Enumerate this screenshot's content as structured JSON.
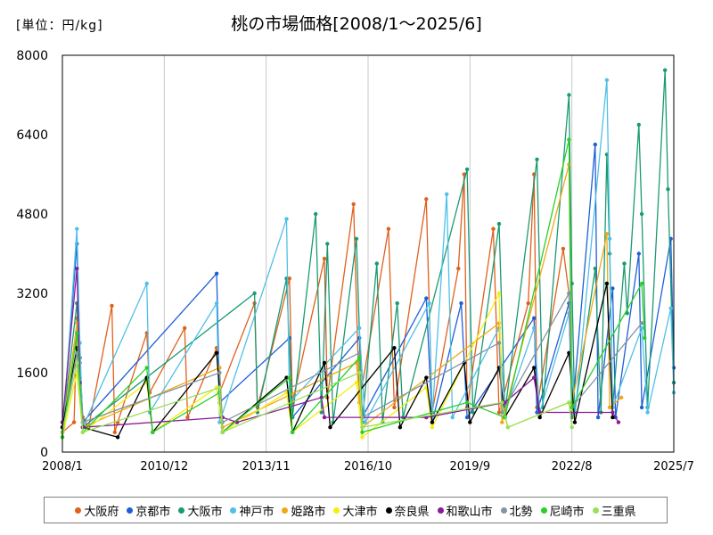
{
  "unit_label": "[単位：円/kg]",
  "title": "桃の市場価格[2008/1～2025/6]",
  "chart_data": {
    "type": "line",
    "title": "桃の市場価格[2008/1～2025/6]",
    "ylabel": "[単位：円/kg]",
    "ylim": [
      0,
      8000
    ],
    "yticks": [
      "0",
      "1600",
      "3200",
      "4800",
      "6400",
      "8000"
    ],
    "xticks": [
      "2008/1",
      "2010/12",
      "2013/11",
      "2016/10",
      "2019/9",
      "2022/8",
      "2025/7"
    ],
    "xlim": [
      "2008/1",
      "2025/7"
    ],
    "grid": "vertical",
    "legend_position": "bottom",
    "series": [
      {
        "name": "大阪府",
        "color": "#e0601c",
        "points": [
          [
            "2008/1",
            400
          ],
          [
            "2008/5",
            600
          ],
          [
            "2008/6",
            2700
          ],
          [
            "2008/7",
            1800
          ],
          [
            "2008/8",
            700
          ],
          [
            "2008/10",
            500
          ],
          [
            "2009/6",
            2950
          ],
          [
            "2009/7",
            400
          ],
          [
            "2009/8",
            600
          ],
          [
            "2010/6",
            2400
          ],
          [
            "2010/7",
            1200
          ],
          [
            "2011/7",
            2500
          ],
          [
            "2011/8",
            700
          ],
          [
            "2012/6",
            2100
          ],
          [
            "2012/7",
            1200
          ],
          [
            "2013/7",
            3000
          ],
          [
            "2013/8",
            900
          ],
          [
            "2014/7",
            3500
          ],
          [
            "2014/8",
            1000
          ],
          [
            "2015/7",
            3900
          ],
          [
            "2015/8",
            1100
          ],
          [
            "2016/5",
            5000
          ],
          [
            "2016/7",
            1000
          ],
          [
            "2017/5",
            4500
          ],
          [
            "2017/7",
            900
          ],
          [
            "2018/6",
            5100
          ],
          [
            "2018/8",
            800
          ],
          [
            "2019/5",
            3700
          ],
          [
            "2019/7",
            5600
          ],
          [
            "2019/8",
            900
          ],
          [
            "2020/5",
            4500
          ],
          [
            "2020/7",
            800
          ],
          [
            "2021/5",
            3000
          ],
          [
            "2021/7",
            5600
          ],
          [
            "2021/8",
            900
          ],
          [
            "2022/5",
            4100
          ],
          [
            "2022/7",
            3200
          ],
          [
            "2022/8",
            800
          ]
        ]
      },
      {
        "name": "京都市",
        "color": "#1f5fd6",
        "points": [
          [
            "2008/1",
            400
          ],
          [
            "2008/6",
            4200
          ],
          [
            "2008/7",
            1900
          ],
          [
            "2008/8",
            600
          ],
          [
            "2012/6",
            3600
          ],
          [
            "2012/7",
            1000
          ],
          [
            "2014/7",
            2300
          ],
          [
            "2014/8",
            700
          ],
          [
            "2016/7",
            2300
          ],
          [
            "2016/8",
            700
          ],
          [
            "2018/6",
            3100
          ],
          [
            "2018/8",
            600
          ],
          [
            "2019/6",
            3000
          ],
          [
            "2019/8",
            700
          ],
          [
            "2021/7",
            2700
          ],
          [
            "2021/8",
            800
          ],
          [
            "2022/7",
            3000
          ],
          [
            "2022/8",
            700
          ],
          [
            "2023/4",
            6200
          ],
          [
            "2023/5",
            700
          ],
          [
            "2023/10",
            3300
          ],
          [
            "2023/11",
            700
          ],
          [
            "2024/7",
            4000
          ],
          [
            "2024/8",
            900
          ],
          [
            "2025/6",
            4300
          ],
          [
            "2025/7",
            1700
          ]
        ]
      },
      {
        "name": "大阪市",
        "color": "#1a9a72",
        "points": [
          [
            "2008/1",
            500
          ],
          [
            "2008/6",
            3000
          ],
          [
            "2008/7",
            1500
          ],
          [
            "2008/8",
            500
          ],
          [
            "2013/7",
            3200
          ],
          [
            "2013/8",
            800
          ],
          [
            "2014/6",
            3500
          ],
          [
            "2014/8",
            700
          ],
          [
            "2015/4",
            4800
          ],
          [
            "2015/6",
            800
          ],
          [
            "2015/8",
            4200
          ],
          [
            "2015/10",
            600
          ],
          [
            "2016/6",
            4300
          ],
          [
            "2016/8",
            600
          ],
          [
            "2017/1",
            3800
          ],
          [
            "2017/3",
            600
          ],
          [
            "2017/8",
            3000
          ],
          [
            "2017/10",
            700
          ],
          [
            "2019/8",
            5700
          ],
          [
            "2019/10",
            800
          ],
          [
            "2020/7",
            4600
          ],
          [
            "2020/9",
            800
          ],
          [
            "2021/8",
            5900
          ],
          [
            "2021/10",
            900
          ],
          [
            "2022/7",
            7200
          ],
          [
            "2022/8",
            3400
          ],
          [
            "2022/9",
            800
          ],
          [
            "2023/4",
            3700
          ],
          [
            "2023/6",
            800
          ],
          [
            "2023/8",
            6000
          ],
          [
            "2023/9",
            4000
          ],
          [
            "2023/10",
            900
          ],
          [
            "2024/2",
            3800
          ],
          [
            "2024/3",
            2800
          ],
          [
            "2024/7",
            6600
          ],
          [
            "2024/8",
            4800
          ],
          [
            "2024/10",
            900
          ],
          [
            "2025/4",
            7700
          ],
          [
            "2025/5",
            5300
          ],
          [
            "2025/7",
            1400
          ]
        ]
      },
      {
        "name": "神戸市",
        "color": "#4fc0e8",
        "points": [
          [
            "2008/1",
            300
          ],
          [
            "2008/6",
            4500
          ],
          [
            "2008/7",
            2200
          ],
          [
            "2008/8",
            500
          ],
          [
            "2010/6",
            3400
          ],
          [
            "2010/7",
            800
          ],
          [
            "2012/6",
            3000
          ],
          [
            "2012/7",
            600
          ],
          [
            "2014/6",
            4700
          ],
          [
            "2014/7",
            1000
          ],
          [
            "2016/7",
            2500
          ],
          [
            "2016/9",
            600
          ],
          [
            "2018/7",
            3000
          ],
          [
            "2018/8",
            700
          ],
          [
            "2019/1",
            5200
          ],
          [
            "2019/3",
            700
          ],
          [
            "2020/7",
            2500
          ],
          [
            "2020/9",
            800
          ],
          [
            "2021/7",
            2500
          ],
          [
            "2021/9",
            800
          ],
          [
            "2022/7",
            2800
          ],
          [
            "2022/9",
            700
          ],
          [
            "2023/8",
            7500
          ],
          [
            "2023/9",
            4300
          ],
          [
            "2023/10",
            900
          ],
          [
            "2024/8",
            2500
          ],
          [
            "2024/10",
            800
          ],
          [
            "2025/6",
            2900
          ],
          [
            "2025/7",
            1200
          ]
        ]
      },
      {
        "name": "姫路市",
        "color": "#f0a818",
        "points": [
          [
            "2008/1",
            400
          ],
          [
            "2008/6",
            2600
          ],
          [
            "2008/7",
            1300
          ],
          [
            "2008/8",
            500
          ],
          [
            "2012/7",
            1700
          ],
          [
            "2012/8",
            500
          ],
          [
            "2016/6",
            1800
          ],
          [
            "2016/8",
            500
          ],
          [
            "2020/7",
            2600
          ],
          [
            "2020/8",
            600
          ],
          [
            "2022/7",
            5800
          ],
          [
            "2022/8",
            1000
          ],
          [
            "2023/8",
            4400
          ],
          [
            "2023/9",
            900
          ],
          [
            "2024/1",
            1100
          ]
        ]
      },
      {
        "name": "大津市",
        "color": "#f5ee10",
        "points": [
          [
            "2008/1",
            300
          ],
          [
            "2008/6",
            1600
          ],
          [
            "2008/8",
            400
          ],
          [
            "2010/6",
            1400
          ],
          [
            "2010/8",
            400
          ],
          [
            "2012/6",
            1300
          ],
          [
            "2012/8",
            400
          ],
          [
            "2014/6",
            1200
          ],
          [
            "2014/8",
            400
          ],
          [
            "2016/6",
            1400
          ],
          [
            "2016/8",
            300
          ],
          [
            "2018/6",
            1300
          ],
          [
            "2018/8",
            500
          ],
          [
            "2020/7",
            3200
          ],
          [
            "2020/8",
            900
          ],
          [
            "2020/10",
            500
          ],
          [
            "2022/7",
            1000
          ],
          [
            "2022/9",
            700
          ]
        ]
      },
      {
        "name": "奈良県",
        "color": "#000000",
        "points": [
          [
            "2008/1",
            500
          ],
          [
            "2008/6",
            2100
          ],
          [
            "2008/8",
            500
          ],
          [
            "2009/8",
            300
          ],
          [
            "2010/6",
            1500
          ],
          [
            "2010/8",
            400
          ],
          [
            "2012/6",
            2000
          ],
          [
            "2012/8",
            400
          ],
          [
            "2014/6",
            1500
          ],
          [
            "2014/8",
            400
          ],
          [
            "2015/7",
            1800
          ],
          [
            "2015/9",
            500
          ],
          [
            "2017/7",
            2100
          ],
          [
            "2017/9",
            500
          ],
          [
            "2018/6",
            1500
          ],
          [
            "2018/8",
            600
          ],
          [
            "2019/7",
            1800
          ],
          [
            "2019/9",
            600
          ],
          [
            "2020/7",
            1700
          ],
          [
            "2020/9",
            700
          ],
          [
            "2021/7",
            1700
          ],
          [
            "2021/9",
            700
          ],
          [
            "2022/7",
            2000
          ],
          [
            "2022/9",
            600
          ],
          [
            "2023/8",
            3400
          ],
          [
            "2023/10",
            700
          ]
        ]
      },
      {
        "name": "和歌山市",
        "color": "#8a1a9a",
        "points": [
          [
            "2008/1",
            600
          ],
          [
            "2008/6",
            3700
          ],
          [
            "2008/7",
            1400
          ],
          [
            "2008/8",
            500
          ],
          [
            "2012/8",
            700
          ],
          [
            "2013/1",
            600
          ],
          [
            "2015/6",
            1100
          ],
          [
            "2015/7",
            700
          ],
          [
            "2018/6",
            700
          ],
          [
            "2020/9",
            1000
          ],
          [
            "2021/7",
            1500
          ],
          [
            "2021/9",
            800
          ],
          [
            "2023/10",
            800
          ],
          [
            "2023/12",
            600
          ]
        ]
      },
      {
        "name": "北勢",
        "color": "#8494a4",
        "points": [
          [
            "2008/1",
            400
          ],
          [
            "2008/6",
            2000
          ],
          [
            "2008/8",
            600
          ],
          [
            "2012/7",
            1600
          ],
          [
            "2012/8",
            600
          ],
          [
            "2016/7",
            2000
          ],
          [
            "2016/8",
            700
          ],
          [
            "2020/7",
            2200
          ],
          [
            "2020/8",
            800
          ],
          [
            "2022/7",
            3200
          ],
          [
            "2022/8",
            900
          ],
          [
            "2024/8",
            2600
          ]
        ]
      },
      {
        "name": "尼崎市",
        "color": "#2ad02a",
        "points": [
          [
            "2008/1",
            300
          ],
          [
            "2008/6",
            2400
          ],
          [
            "2008/8",
            400
          ],
          [
            "2010/6",
            1700
          ],
          [
            "2010/8",
            400
          ],
          [
            "2012/7",
            1200
          ],
          [
            "2012/8",
            400
          ],
          [
            "2014/7",
            1500
          ],
          [
            "2014/8",
            400
          ],
          [
            "2016/7",
            1900
          ],
          [
            "2016/8",
            400
          ],
          [
            "2019/8",
            1000
          ],
          [
            "2020/9",
            700
          ],
          [
            "2022/7",
            6300
          ],
          [
            "2022/8",
            900
          ],
          [
            "2024/8",
            3400
          ],
          [
            "2024/9",
            2300
          ]
        ]
      },
      {
        "name": "三重県",
        "color": "#9ae05a",
        "points": [
          [
            "2008/1",
            400
          ],
          [
            "2008/6",
            1800
          ],
          [
            "2008/8",
            400
          ],
          [
            "2012/7",
            1300
          ],
          [
            "2012/8",
            400
          ],
          [
            "2016/7",
            1600
          ],
          [
            "2016/8",
            500
          ],
          [
            "2020/8",
            1000
          ],
          [
            "2020/10",
            500
          ],
          [
            "2022/7",
            1000
          ],
          [
            "2022/8",
            500
          ]
        ]
      }
    ]
  }
}
